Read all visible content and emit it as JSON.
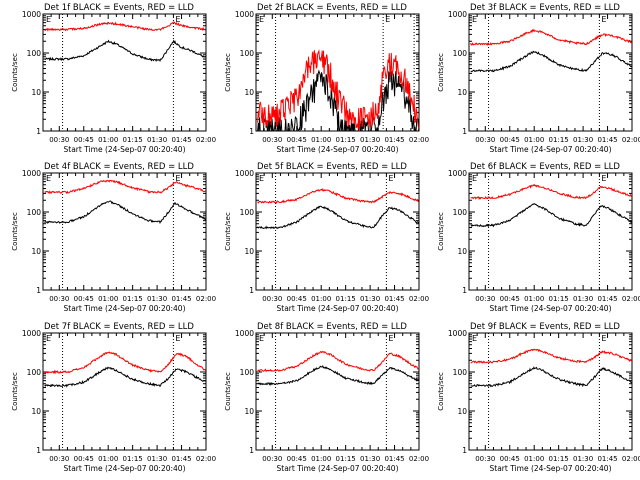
{
  "figure": {
    "xlabel": "Start Time (24-Sep-07 00:20:40)",
    "ylabel": "Counts/sec",
    "colors": {
      "events": "#000000",
      "lld": "#ff0000"
    }
  },
  "chart_data": [
    {
      "type": "line",
      "title": "Det 1f BLACK = Events, RED = LLD",
      "xlabel": "Start Time (24-Sep-07 00:20:40)",
      "ylabel": "Counts/sec",
      "xlim": [
        "00:20",
        "02:00"
      ],
      "ylim": [
        1,
        1000
      ],
      "yscale": "log",
      "x_ticks": [
        "00:30",
        "00:45",
        "01:00",
        "01:15",
        "01:30",
        "01:45",
        "02:00"
      ],
      "y_ticks": [
        "1",
        "10",
        "100",
        "1000"
      ],
      "dotted_lines": [
        "00:32",
        "01:40"
      ],
      "flag_labels": [
        "E",
        "E"
      ],
      "x": [
        "00:21",
        "00:35",
        "00:45",
        "00:55",
        "01:00",
        "01:05",
        "01:15",
        "01:25",
        "01:32",
        "01:37",
        "01:40",
        "01:45",
        "01:52",
        "02:00"
      ],
      "series": [
        {
          "name": "Events",
          "color": "#000000",
          "values": [
            70,
            70,
            85,
            150,
            200,
            170,
            95,
            68,
            65,
            130,
            200,
            140,
            110,
            75
          ]
        },
        {
          "name": "LLD",
          "color": "#ff0000",
          "values": [
            400,
            400,
            430,
            550,
            580,
            560,
            470,
            400,
            400,
            480,
            620,
            500,
            450,
            400
          ]
        }
      ]
    },
    {
      "type": "line",
      "title": "Det 2f BLACK = Events, RED = LLD",
      "xlabel": "Start Time (24-Sep-07 00:20:40)",
      "ylabel": "Counts/sec",
      "xlim": [
        "00:20",
        "02:00"
      ],
      "ylim": [
        1,
        1000
      ],
      "yscale": "log",
      "x_ticks": [
        "00:30",
        "00:45",
        "01:00",
        "01:15",
        "01:30",
        "01:45",
        "02:00"
      ],
      "y_ticks": [
        "1",
        "10",
        "100",
        "1000"
      ],
      "dotted_lines": [
        "00:32",
        "01:38",
        "01:57"
      ],
      "flag_labels": [
        "E",
        "E"
      ],
      "x": [
        "00:21",
        "00:30",
        "00:40",
        "00:45",
        "00:52",
        "00:58",
        "01:02",
        "01:06",
        "01:10",
        "01:15",
        "01:25",
        "01:35",
        "01:38",
        "01:42",
        "01:48",
        "01:53",
        "01:57",
        "02:00"
      ],
      "series": [
        {
          "name": "Events",
          "color": "#000000",
          "values": [
            1,
            1,
            1,
            1.2,
            5,
            18,
            20,
            8,
            2,
            1,
            1,
            1,
            6,
            18,
            15,
            6,
            1.5,
            1
          ]
        },
        {
          "name": "LLD",
          "color": "#ff0000",
          "values": [
            3,
            2.5,
            4,
            8,
            40,
            65,
            55,
            25,
            8,
            3,
            2,
            3,
            25,
            50,
            40,
            15,
            4,
            2
          ]
        }
      ]
    },
    {
      "type": "line",
      "title": "Det 3f BLACK = Events, RED = LLD",
      "xlabel": "Start Time (24-Sep-07 00:20:40)",
      "ylabel": "Counts/sec",
      "xlim": [
        "00:20",
        "02:00"
      ],
      "ylim": [
        1,
        1000
      ],
      "yscale": "log",
      "x_ticks": [
        "00:30",
        "00:45",
        "01:00",
        "01:15",
        "01:30",
        "01:45",
        "02:00"
      ],
      "y_ticks": [
        "1",
        "10",
        "100",
        "1000"
      ],
      "dotted_lines": [
        "00:32",
        "01:40"
      ],
      "flag_labels": [
        "E",
        "E"
      ],
      "x": [
        "00:21",
        "00:35",
        "00:45",
        "00:55",
        "01:00",
        "01:05",
        "01:15",
        "01:25",
        "01:32",
        "01:37",
        "01:42",
        "01:48",
        "01:55",
        "02:00"
      ],
      "series": [
        {
          "name": "Events",
          "color": "#000000",
          "values": [
            35,
            35,
            45,
            85,
            110,
            90,
            50,
            38,
            35,
            60,
            100,
            90,
            60,
            45
          ]
        },
        {
          "name": "LLD",
          "color": "#ff0000",
          "values": [
            170,
            170,
            200,
            320,
            380,
            340,
            220,
            180,
            170,
            230,
            300,
            280,
            220,
            190
          ]
        }
      ]
    },
    {
      "type": "line",
      "title": "Det 4f BLACK = Events, RED = LLD",
      "xlabel": "Start Time (24-Sep-07 00:20:40)",
      "ylabel": "Counts/sec",
      "xlim": [
        "00:20",
        "02:00"
      ],
      "ylim": [
        1,
        1000
      ],
      "yscale": "log",
      "x_ticks": [
        "00:30",
        "00:45",
        "01:00",
        "01:15",
        "01:30",
        "01:45",
        "02:00"
      ],
      "y_ticks": [
        "1",
        "10",
        "100",
        "1000"
      ],
      "dotted_lines": [
        "00:32",
        "01:40"
      ],
      "flag_labels": [
        "E",
        "E"
      ],
      "x": [
        "00:21",
        "00:35",
        "00:45",
        "00:55",
        "01:00",
        "01:05",
        "01:15",
        "01:25",
        "01:32",
        "01:37",
        "01:41",
        "01:46",
        "01:53",
        "02:00"
      ],
      "series": [
        {
          "name": "Events",
          "color": "#000000",
          "values": [
            55,
            55,
            75,
            150,
            190,
            160,
            90,
            60,
            55,
            100,
            170,
            130,
            90,
            65
          ]
        },
        {
          "name": "LLD",
          "color": "#ff0000",
          "values": [
            320,
            320,
            400,
            600,
            620,
            600,
            420,
            330,
            320,
            420,
            580,
            500,
            420,
            330
          ]
        }
      ]
    },
    {
      "type": "line",
      "title": "Det 5f BLACK = Events, RED = LLD",
      "xlabel": "Start Time (24-Sep-07 00:20:40)",
      "ylabel": "Counts/sec",
      "xlim": [
        "00:20",
        "02:00"
      ],
      "ylim": [
        1,
        1000
      ],
      "yscale": "log",
      "x_ticks": [
        "00:30",
        "00:45",
        "01:00",
        "01:15",
        "01:30",
        "01:45",
        "02:00"
      ],
      "y_ticks": [
        "1",
        "10",
        "100",
        "1000"
      ],
      "dotted_lines": [
        "00:32",
        "01:40"
      ],
      "flag_labels": [
        "E",
        "E"
      ],
      "x": [
        "00:21",
        "00:35",
        "00:45",
        "00:55",
        "01:00",
        "01:05",
        "01:15",
        "01:25",
        "01:32",
        "01:37",
        "01:42",
        "01:48",
        "01:55",
        "02:00"
      ],
      "series": [
        {
          "name": "Events",
          "color": "#000000",
          "values": [
            40,
            40,
            55,
            110,
            140,
            115,
            60,
            45,
            40,
            75,
            130,
            110,
            70,
            50
          ]
        },
        {
          "name": "LLD",
          "color": "#ff0000",
          "values": [
            180,
            180,
            210,
            330,
            380,
            340,
            230,
            190,
            180,
            240,
            320,
            300,
            230,
            190
          ]
        }
      ]
    },
    {
      "type": "line",
      "title": "Det 6f BLACK = Events, RED = LLD",
      "xlabel": "Start Time (24-Sep-07 00:20:40)",
      "ylabel": "Counts/sec",
      "xlim": [
        "00:20",
        "02:00"
      ],
      "ylim": [
        1,
        1000
      ],
      "yscale": "log",
      "x_ticks": [
        "00:30",
        "00:45",
        "01:00",
        "01:15",
        "01:30",
        "01:45",
        "02:00"
      ],
      "y_ticks": [
        "1",
        "10",
        "100",
        "1000"
      ],
      "dotted_lines": [
        "00:32",
        "01:40"
      ],
      "flag_labels": [
        "E",
        "E"
      ],
      "x": [
        "00:21",
        "00:35",
        "00:45",
        "00:55",
        "01:00",
        "01:05",
        "01:15",
        "01:25",
        "01:32",
        "01:37",
        "01:41",
        "01:46",
        "01:53",
        "02:00"
      ],
      "series": [
        {
          "name": "Events",
          "color": "#000000",
          "values": [
            45,
            45,
            60,
            120,
            160,
            130,
            70,
            50,
            45,
            90,
            150,
            120,
            80,
            55
          ]
        },
        {
          "name": "LLD",
          "color": "#ff0000",
          "values": [
            230,
            230,
            280,
            420,
            480,
            440,
            300,
            240,
            230,
            320,
            450,
            400,
            320,
            250
          ]
        }
      ]
    },
    {
      "type": "line",
      "title": "Det 7f BLACK = Events, RED = LLD",
      "xlabel": "Start Time (24-Sep-07 00:20:40)",
      "ylabel": "Counts/sec",
      "xlim": [
        "00:20",
        "02:00"
      ],
      "ylim": [
        1,
        1000
      ],
      "yscale": "log",
      "x_ticks": [
        "00:30",
        "00:45",
        "01:00",
        "01:15",
        "01:30",
        "01:45",
        "02:00"
      ],
      "y_ticks": [
        "1",
        "10",
        "100",
        "1000"
      ],
      "dotted_lines": [
        "00:32",
        "01:40"
      ],
      "flag_labels": [
        "E",
        "E"
      ],
      "x": [
        "00:21",
        "00:35",
        "00:45",
        "00:55",
        "01:00",
        "01:05",
        "01:15",
        "01:25",
        "01:32",
        "01:37",
        "01:42",
        "01:48",
        "01:55",
        "02:00"
      ],
      "series": [
        {
          "name": "Events",
          "color": "#000000",
          "values": [
            45,
            45,
            55,
            100,
            130,
            110,
            65,
            50,
            45,
            70,
            120,
            100,
            70,
            55
          ]
        },
        {
          "name": "LLD",
          "color": "#ff0000",
          "values": [
            100,
            100,
            130,
            250,
            330,
            280,
            150,
            110,
            100,
            160,
            300,
            250,
            150,
            110
          ]
        }
      ]
    },
    {
      "type": "line",
      "title": "Det 8f BLACK = Events, RED = LLD",
      "xlabel": "Start Time (24-Sep-07 00:20:40)",
      "ylabel": "Counts/sec",
      "xlim": [
        "00:20",
        "02:00"
      ],
      "ylim": [
        1,
        1000
      ],
      "yscale": "log",
      "x_ticks": [
        "00:30",
        "00:45",
        "01:00",
        "01:15",
        "01:30",
        "01:45",
        "02:00"
      ],
      "y_ticks": [
        "1",
        "10",
        "100",
        "1000"
      ],
      "dotted_lines": [
        "00:32",
        "01:40"
      ],
      "flag_labels": [
        "E",
        "E"
      ],
      "x": [
        "00:21",
        "00:35",
        "00:45",
        "00:55",
        "01:00",
        "01:05",
        "01:15",
        "01:25",
        "01:32",
        "01:37",
        "01:42",
        "01:48",
        "01:55",
        "02:00"
      ],
      "series": [
        {
          "name": "Events",
          "color": "#000000",
          "values": [
            50,
            50,
            60,
            110,
            140,
            120,
            70,
            55,
            50,
            80,
            130,
            110,
            75,
            60
          ]
        },
        {
          "name": "LLD",
          "color": "#ff0000",
          "values": [
            110,
            110,
            140,
            260,
            330,
            290,
            160,
            120,
            110,
            170,
            300,
            250,
            160,
            120
          ]
        }
      ]
    },
    {
      "type": "line",
      "title": "Det 9f BLACK = Events, RED = LLD",
      "xlabel": "Start Time (24-Sep-07 00:20:40)",
      "ylabel": "Counts/sec",
      "xlim": [
        "00:20",
        "02:00"
      ],
      "ylim": [
        1,
        1000
      ],
      "yscale": "log",
      "x_ticks": [
        "00:30",
        "00:45",
        "01:00",
        "01:15",
        "01:30",
        "01:45",
        "02:00"
      ],
      "y_ticks": [
        "1",
        "10",
        "100",
        "1000"
      ],
      "dotted_lines": [
        "00:32",
        "01:40"
      ],
      "flag_labels": [
        "E",
        "E"
      ],
      "x": [
        "00:21",
        "00:35",
        "00:45",
        "00:55",
        "01:00",
        "01:05",
        "01:15",
        "01:25",
        "01:32",
        "01:37",
        "01:42",
        "01:48",
        "01:55",
        "02:00"
      ],
      "series": [
        {
          "name": "Events",
          "color": "#000000",
          "values": [
            45,
            45,
            55,
            100,
            130,
            110,
            65,
            50,
            45,
            75,
            125,
            100,
            70,
            55
          ]
        },
        {
          "name": "LLD",
          "color": "#ff0000",
          "values": [
            180,
            180,
            210,
            330,
            380,
            340,
            230,
            190,
            180,
            240,
            330,
            300,
            230,
            190
          ]
        }
      ]
    }
  ]
}
